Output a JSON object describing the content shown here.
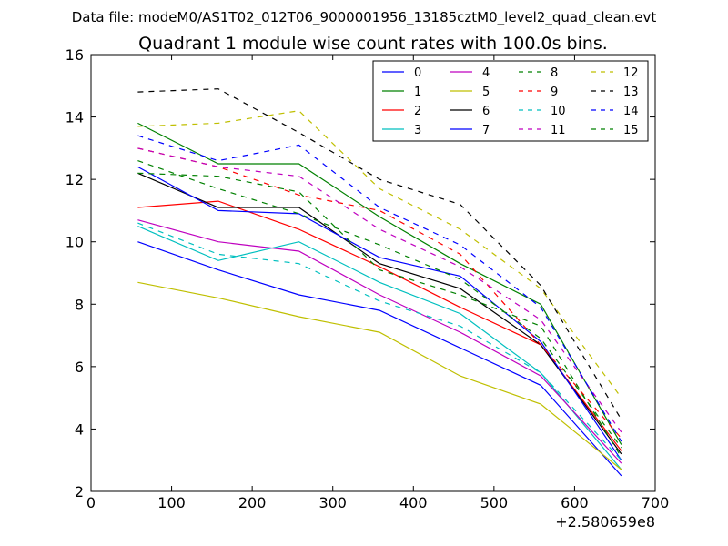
{
  "suptitle": "Data file: modeM0/AS1T02_012T06_9000001956_13185cztM0_level2_quad_clean.evt",
  "chart_data": {
    "type": "line",
    "title": "Quadrant 1 module wise count rates with 100.0s bins.",
    "xlabel": "",
    "ylabel": "",
    "x_offset_label": "+2.580659e8",
    "xlim": [
      0,
      700
    ],
    "ylim": [
      2,
      16
    ],
    "x_ticks": [
      "0",
      "100",
      "200",
      "300",
      "400",
      "500",
      "600",
      "700"
    ],
    "y_ticks": [
      "2",
      "4",
      "6",
      "8",
      "10",
      "12",
      "14",
      "16"
    ],
    "grid": false,
    "legend_position": "top-right",
    "x": [
      58,
      158,
      258,
      358,
      458,
      558,
      658
    ],
    "series": [
      {
        "name": "0",
        "color": "#0000ff",
        "dashed": false,
        "values": [
          10.0,
          9.1,
          8.3,
          7.8,
          6.6,
          5.4,
          2.5
        ]
      },
      {
        "name": "1",
        "color": "#008000",
        "dashed": false,
        "values": [
          13.8,
          12.5,
          12.5,
          10.8,
          9.3,
          8.0,
          3.5
        ]
      },
      {
        "name": "2",
        "color": "#ff0000",
        "dashed": false,
        "values": [
          11.1,
          11.3,
          10.4,
          9.2,
          7.9,
          6.7,
          3.3
        ]
      },
      {
        "name": "3",
        "color": "#00bfbf",
        "dashed": false,
        "values": [
          10.5,
          9.4,
          10.0,
          8.7,
          7.7,
          5.8,
          2.7
        ]
      },
      {
        "name": "4",
        "color": "#bf00bf",
        "dashed": false,
        "values": [
          10.7,
          10.0,
          9.7,
          8.3,
          7.1,
          5.7,
          2.9
        ]
      },
      {
        "name": "5",
        "color": "#bfbf00",
        "dashed": false,
        "values": [
          8.7,
          8.2,
          7.6,
          7.1,
          5.7,
          4.8,
          2.7
        ]
      },
      {
        "name": "6",
        "color": "#000000",
        "dashed": false,
        "values": [
          12.2,
          11.1,
          11.1,
          9.3,
          8.5,
          6.7,
          3.2
        ]
      },
      {
        "name": "7",
        "color": "#0000ff",
        "dashed": false,
        "values": [
          12.4,
          11.0,
          10.9,
          9.5,
          8.9,
          6.8,
          3.0
        ]
      },
      {
        "name": "8",
        "color": "#008000",
        "dashed": true,
        "values": [
          12.2,
          12.1,
          11.6,
          9.1,
          8.3,
          7.3,
          3.1
        ]
      },
      {
        "name": "9",
        "color": "#ff0000",
        "dashed": true,
        "values": [
          13.0,
          12.4,
          11.5,
          11.0,
          9.6,
          6.7,
          3.7
        ]
      },
      {
        "name": "10",
        "color": "#00bfbf",
        "dashed": true,
        "values": [
          10.6,
          9.6,
          9.3,
          8.1,
          7.3,
          5.8,
          3.0
        ]
      },
      {
        "name": "11",
        "color": "#bf00bf",
        "dashed": true,
        "values": [
          13.0,
          12.4,
          12.1,
          10.4,
          9.2,
          7.5,
          3.9
        ]
      },
      {
        "name": "12",
        "color": "#bfbf00",
        "dashed": true,
        "values": [
          13.7,
          13.8,
          14.2,
          11.7,
          10.4,
          8.5,
          5.0
        ]
      },
      {
        "name": "13",
        "color": "#000000",
        "dashed": true,
        "values": [
          14.8,
          14.9,
          13.5,
          12.0,
          11.2,
          8.6,
          4.3
        ]
      },
      {
        "name": "14",
        "color": "#0000ff",
        "dashed": true,
        "values": [
          13.4,
          12.6,
          13.1,
          11.1,
          9.9,
          7.9,
          3.6
        ]
      },
      {
        "name": "15",
        "color": "#008000",
        "dashed": true,
        "values": [
          12.6,
          11.7,
          10.9,
          9.9,
          8.8,
          6.9,
          3.4
        ]
      }
    ]
  }
}
